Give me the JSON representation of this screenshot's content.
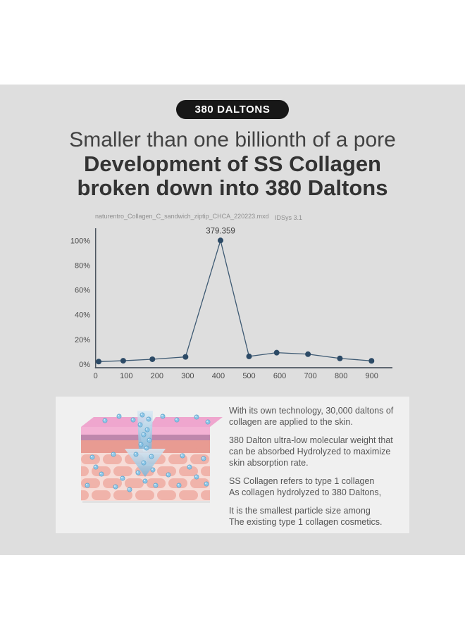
{
  "badge": {
    "label": "380 DALTONS"
  },
  "heading": {
    "subtitle": "Smaller than one billionth of a pore",
    "title_line1": "Development of SS Collagen",
    "title_line2": "broken down into 380 Daltons"
  },
  "chart": {
    "file_label": "naturentro_Collagen_C_sandwich_ziptip_CHCA_220223.mxd",
    "software_label": "IDSys 3.1"
  },
  "chart_data": {
    "type": "line",
    "title": "",
    "xlabel": "",
    "ylabel": "",
    "x": [
      10,
      90,
      185,
      293,
      407,
      500,
      590,
      692,
      796,
      899
    ],
    "values": [
      2.1,
      2.8,
      4,
      5.9,
      100,
      6.3,
      9.3,
      8.1,
      4.7,
      2.7
    ],
    "peak_annotation": {
      "x": 407,
      "value": 100,
      "label": "379.359"
    },
    "x_ticks": [
      0,
      100,
      200,
      300,
      400,
      500,
      600,
      700,
      800,
      900
    ],
    "y_ticks": [
      "0%",
      "20%",
      "40%",
      "60%",
      "80%",
      "100%"
    ],
    "y_tick_values": [
      0,
      20,
      40,
      60,
      80,
      100
    ],
    "xlim": [
      0,
      965
    ],
    "ylim": [
      0,
      100
    ],
    "grid": false,
    "legend": false,
    "line_color": "#3e5a73",
    "point_color": "#2c4a66",
    "axis_color": "#4d5660",
    "tick_text_color": "#4b4b4b",
    "peak_label_color": "#3f3f3f"
  },
  "info_panel": {
    "paragraphs": [
      [
        "With its own technology, 30,000 daltons of",
        "collagen are applied to the skin."
      ],
      [
        "380 Dalton ultra-low molecular weight that",
        "can be absorbed Hydrolyzed to maximize",
        "skin absorption rate."
      ],
      [
        "SS Collagen refers to type 1 collagen",
        "As collagen hydrolyzed to 380 Daltons,"
      ],
      [
        "It is the smallest particle size among",
        "The existing type 1 collagen cosmetics."
      ]
    ]
  },
  "colors": {
    "background": "#ffffff",
    "band": "#dedede",
    "panel": "#f0f0f0",
    "badge_bg": "#171717",
    "badge_text": "#ffffff",
    "heading_text": "#383838",
    "body_text": "#555555",
    "skin_top_pink": "#efa6ce",
    "skin_band_pink": "#f3b2d4",
    "skin_band_mauve": "#bf87ac",
    "skin_band_salmon": "#e89b92",
    "skin_cells_bg": "#f7dcd7",
    "skin_cell": "#f0b3aa",
    "droplet_blue": "#8ec7e8",
    "arrow_blue": "#85bbdb"
  }
}
